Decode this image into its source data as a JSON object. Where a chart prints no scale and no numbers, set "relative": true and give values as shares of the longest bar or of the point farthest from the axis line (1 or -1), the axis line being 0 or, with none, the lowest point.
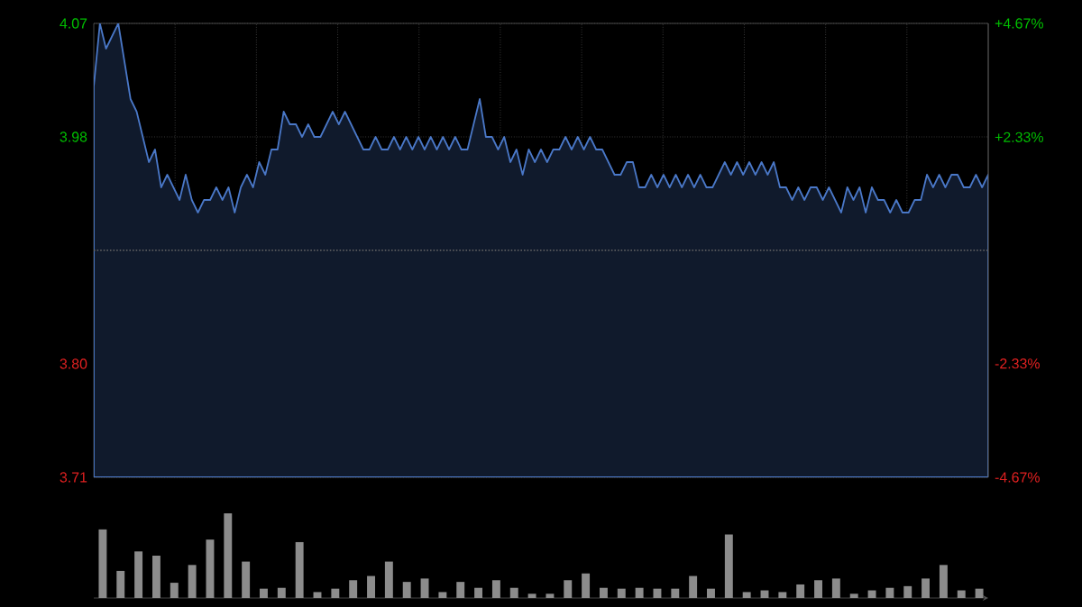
{
  "chart_data": [
    {
      "type": "area",
      "color": "#4a78c8",
      "ylim": [
        3.71,
        4.07
      ],
      "grid": true,
      "tick_labels": "y",
      "yticks": [
        {
          "value": 3.71,
          "label": "3.71"
        },
        {
          "value": 3.8,
          "label": "3.80"
        },
        {
          "value": 3.98,
          "label": "3.98"
        },
        {
          "value": 4.07,
          "label": "4.07"
        }
      ],
      "y2lim": [
        -4.67,
        4.67
      ],
      "y2ticks": [
        {
          "value": -4.67,
          "label": "-4.67%"
        },
        {
          "value": -2.33,
          "label": "-2.33%"
        },
        {
          "value": 2.33,
          "label": "+2.33%"
        },
        {
          "value": 4.67,
          "label": "+4.67%"
        }
      ],
      "ref_lines": [
        {
          "axis": "y",
          "value": 3.89,
          "color": "#666666",
          "line_style": "dotted"
        }
      ],
      "categories": [
        null,
        null,
        null,
        null,
        null,
        null,
        null,
        null,
        null,
        null,
        null,
        null,
        null,
        null,
        null,
        null,
        null,
        null,
        null,
        null,
        null,
        null,
        null,
        null,
        null,
        null,
        null,
        null,
        null,
        null,
        null,
        null,
        null,
        null,
        null,
        null,
        null,
        null,
        null,
        null,
        null,
        null,
        null,
        null,
        null,
        null,
        null,
        null,
        null,
        null,
        null,
        null,
        null,
        null,
        null,
        null,
        null,
        null,
        null,
        null,
        null,
        null,
        null,
        null,
        null,
        null,
        null,
        null,
        null,
        null,
        null,
        null,
        null,
        null,
        null,
        null,
        null,
        null,
        null,
        null,
        null,
        null,
        null,
        null,
        null,
        null,
        null,
        null,
        null,
        null,
        null,
        null,
        null,
        null,
        null,
        null,
        null,
        null,
        null,
        null,
        null,
        null,
        null,
        null,
        null,
        null,
        null,
        null,
        null,
        null,
        null,
        null,
        null,
        null,
        null,
        null,
        null,
        null,
        null,
        null,
        null,
        null,
        null,
        null,
        null,
        null,
        null,
        null,
        null,
        null,
        null,
        null,
        null,
        null,
        null,
        null,
        null,
        null,
        null,
        null,
        null,
        null,
        null,
        null,
        null,
        null,
        null
      ],
      "values": [
        4.02,
        4.07,
        4.05,
        4.06,
        4.07,
        4.04,
        4.01,
        4.0,
        3.98,
        3.96,
        3.97,
        3.94,
        3.95,
        3.94,
        3.93,
        3.95,
        3.93,
        3.92,
        3.93,
        3.93,
        3.94,
        3.93,
        3.94,
        3.92,
        3.94,
        3.95,
        3.94,
        3.96,
        3.95,
        3.97,
        3.97,
        4.0,
        3.99,
        3.99,
        3.98,
        3.99,
        3.98,
        3.98,
        3.99,
        4.0,
        3.99,
        4.0,
        3.99,
        3.98,
        3.97,
        3.97,
        3.98,
        3.97,
        3.97,
        3.98,
        3.97,
        3.98,
        3.97,
        3.98,
        3.97,
        3.98,
        3.97,
        3.98,
        3.97,
        3.98,
        3.97,
        3.97,
        3.99,
        4.01,
        3.98,
        3.98,
        3.97,
        3.98,
        3.96,
        3.97,
        3.95,
        3.97,
        3.96,
        3.97,
        3.96,
        3.97,
        3.97,
        3.98,
        3.97,
        3.98,
        3.97,
        3.98,
        3.97,
        3.97,
        3.96,
        3.95,
        3.95,
        3.96,
        3.96,
        3.94,
        3.94,
        3.95,
        3.94,
        3.95,
        3.94,
        3.95,
        3.94,
        3.95,
        3.94,
        3.95,
        3.94,
        3.94,
        3.95,
        3.96,
        3.95,
        3.96,
        3.95,
        3.96,
        3.95,
        3.96,
        3.95,
        3.96,
        3.94,
        3.94,
        3.93,
        3.94,
        3.93,
        3.94,
        3.94,
        3.93,
        3.94,
        3.93,
        3.92,
        3.94,
        3.93,
        3.94,
        3.92,
        3.94,
        3.93,
        3.93,
        3.92,
        3.93,
        3.92,
        3.92,
        3.93,
        3.93,
        3.95,
        3.94,
        3.95,
        3.94,
        3.95,
        3.95,
        3.94,
        3.94,
        3.95,
        3.94,
        3.95
      ]
    },
    {
      "type": "bar",
      "color": "#8c8c8c",
      "relative": true,
      "tick_labels": false,
      "categories": [
        null,
        null,
        null,
        null,
        null,
        null,
        null,
        null,
        null,
        null,
        null,
        null,
        null,
        null,
        null,
        null,
        null,
        null,
        null,
        null,
        null,
        null,
        null,
        null,
        null,
        null,
        null,
        null,
        null,
        null,
        null,
        null,
        null,
        null,
        null,
        null,
        null,
        null,
        null,
        null,
        null,
        null,
        null,
        null,
        null,
        null,
        null,
        null,
        null,
        null
      ],
      "values": [
        0.81,
        0.32,
        0.55,
        0.5,
        0.18,
        0.39,
        0.69,
        1.0,
        0.43,
        0.11,
        0.12,
        0.66,
        0.07,
        0.11,
        0.21,
        0.26,
        0.43,
        0.19,
        0.23,
        0.07,
        0.19,
        0.12,
        0.21,
        0.12,
        0.05,
        0.05,
        0.21,
        0.29,
        0.12,
        0.11,
        0.12,
        0.11,
        0.11,
        0.26,
        0.11,
        0.75,
        0.07,
        0.09,
        0.07,
        0.16,
        0.21,
        0.23,
        0.05,
        0.09,
        0.12,
        0.14,
        0.23,
        0.39,
        0.09,
        0.11
      ]
    }
  ]
}
